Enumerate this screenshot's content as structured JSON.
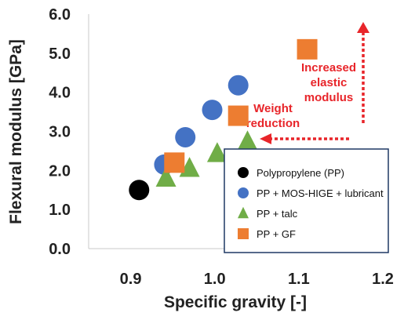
{
  "chart_data": {
    "type": "scatter",
    "xlabel": "Specific gravity [-]",
    "ylabel": "Flexural modulus [GPa]",
    "xlim": [
      0.85,
      1.2
    ],
    "ylim": [
      0.0,
      6.0
    ],
    "xticks": [
      "0.9",
      "1.0",
      "1.1",
      "1.2"
    ],
    "yticks": [
      "0.0",
      "1.0",
      "2.0",
      "3.0",
      "4.0",
      "5.0",
      "6.0"
    ],
    "grid": false,
    "legend_position": "bottom-right",
    "series": [
      {
        "name": "Polypropylene (PP)",
        "marker": "circle",
        "color": "#000000",
        "points": [
          {
            "x": 0.91,
            "y": 1.5
          }
        ]
      },
      {
        "name": "PP + MOS-HIGE + lubricant",
        "marker": "circle",
        "color": "#4472c4",
        "points": [
          {
            "x": 0.94,
            "y": 2.15
          },
          {
            "x": 0.965,
            "y": 2.85
          },
          {
            "x": 0.997,
            "y": 3.55
          },
          {
            "x": 1.028,
            "y": 4.18
          }
        ]
      },
      {
        "name": "PP + talc",
        "marker": "triangle",
        "color": "#70ad47",
        "points": [
          {
            "x": 0.942,
            "y": 1.82
          },
          {
            "x": 0.97,
            "y": 2.07
          },
          {
            "x": 1.003,
            "y": 2.45
          },
          {
            "x": 1.039,
            "y": 2.75
          }
        ]
      },
      {
        "name": "PP + GF",
        "marker": "square",
        "color": "#ed7d31",
        "points": [
          {
            "x": 0.952,
            "y": 2.2
          },
          {
            "x": 1.028,
            "y": 3.4
          },
          {
            "x": 1.11,
            "y": 5.1
          }
        ]
      }
    ],
    "annotations": [
      {
        "text": [
          "Increased",
          "elastic",
          "modulus"
        ],
        "color": "#e8252a"
      },
      {
        "text": [
          "Weight",
          "reduction"
        ],
        "color": "#e8252a"
      }
    ]
  }
}
